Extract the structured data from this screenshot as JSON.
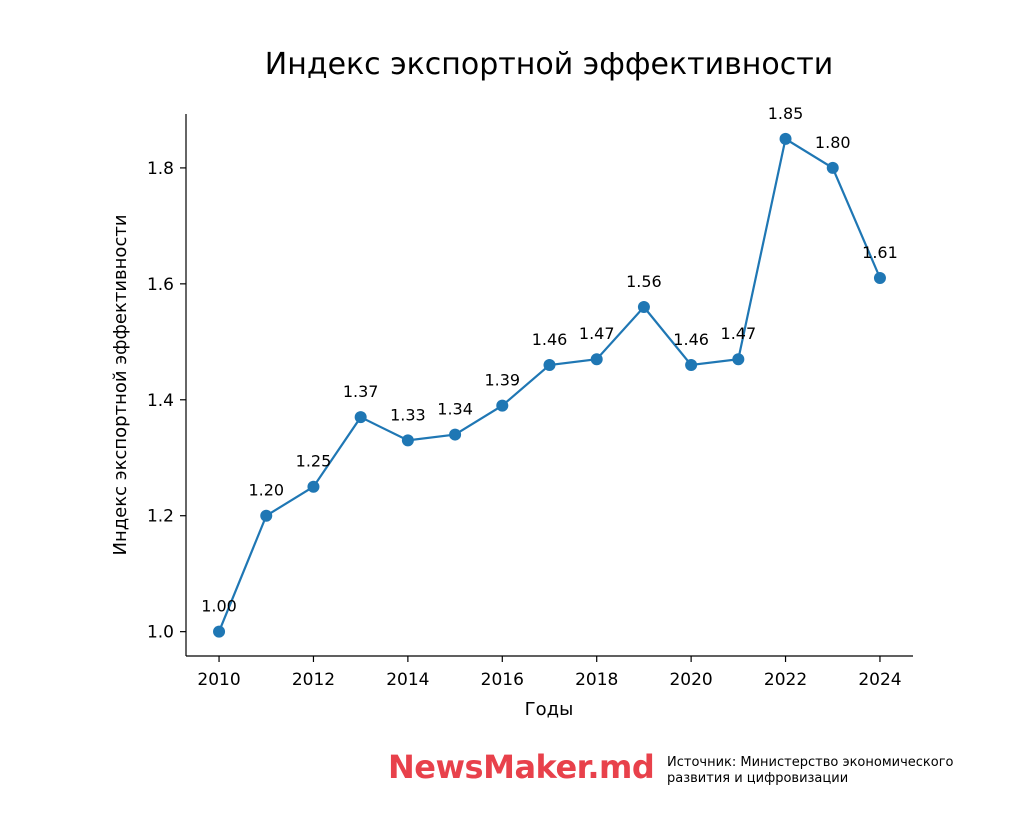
{
  "chart_data": {
    "type": "line",
    "title": "Индекс экспортной эффективности",
    "xlabel": "Годы",
    "ylabel": "Индекс экспортной эффективности",
    "x": [
      2010,
      2011,
      2012,
      2013,
      2014,
      2015,
      2016,
      2017,
      2018,
      2019,
      2020,
      2021,
      2022,
      2023,
      2024
    ],
    "series": [
      {
        "values": [
          1.0,
          1.2,
          1.25,
          1.37,
          1.33,
          1.34,
          1.39,
          1.46,
          1.47,
          1.56,
          1.46,
          1.47,
          1.85,
          1.8,
          1.61
        ],
        "labels": [
          "1.00",
          "1.20",
          "1.25",
          "1.37",
          "1.33",
          "1.34",
          "1.39",
          "1.46",
          "1.47",
          "1.56",
          "1.46",
          "1.47",
          "1.85",
          "1.80",
          "1.61"
        ],
        "color": "#1f77b4"
      }
    ],
    "xticks": [
      "2010",
      "2012",
      "2014",
      "2016",
      "2018",
      "2020",
      "2022",
      "2024"
    ],
    "yticks": [
      "1.0",
      "1.2",
      "1.4",
      "1.6",
      "1.8"
    ],
    "xlim": [
      2009.3,
      2024.7
    ],
    "ylim": [
      0.958,
      1.893
    ],
    "grid": false
  },
  "branding": {
    "logo_text": "NewsMaker.md",
    "source_line1": "Источник: Министерство экономического",
    "source_line2": "развития и цифровизации"
  }
}
